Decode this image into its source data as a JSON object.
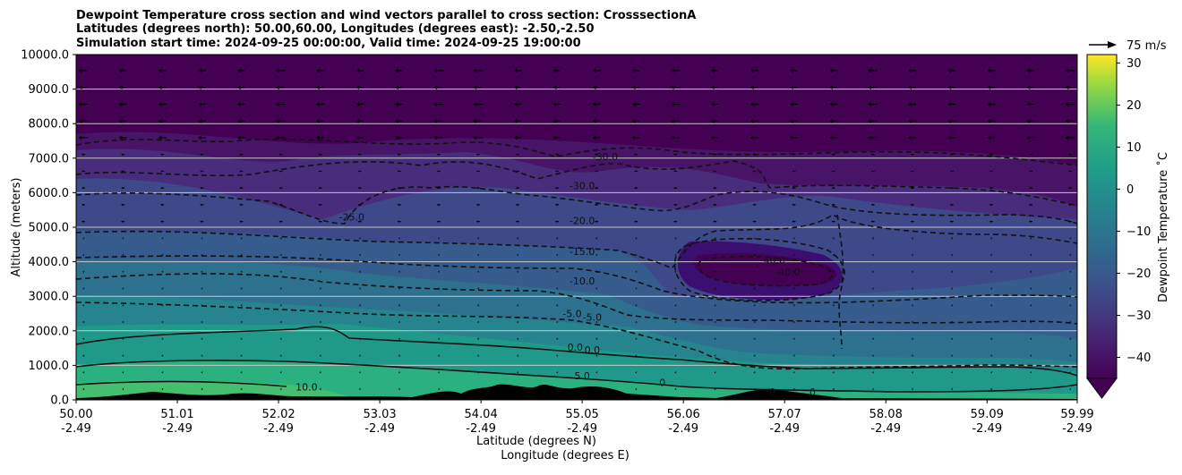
{
  "chart_data": {
    "type": "heatmap",
    "title_lines": [
      "Dewpoint Temperature cross section and wind vectors parallel to cross section: CrosssectionA",
      "Latitudes (degrees north): 50.00,60.00, Longitudes (degrees east): -2.50,-2.50",
      "Simulation start time: 2024-09-25 00:00:00, Valid time: 2024-09-25 19:00:00"
    ],
    "ylabel": "Altitude (meters)",
    "xlabel": "Latitude (degrees N)",
    "xlabel2": "Longitude (degrees E)",
    "ylim": [
      0,
      10000
    ],
    "y_ticks": [
      "0.0",
      "1000.0",
      "2000.0",
      "3000.0",
      "4000.0",
      "5000.0",
      "6000.0",
      "7000.0",
      "8000.0",
      "9000.0",
      "10000.0"
    ],
    "y_tick_values": [
      0,
      1000,
      2000,
      3000,
      4000,
      5000,
      6000,
      7000,
      8000,
      9000,
      10000
    ],
    "x_ticks": [
      {
        "lat": "50.00",
        "lon": "-2.49"
      },
      {
        "lat": "51.01",
        "lon": "-2.49"
      },
      {
        "lat": "52.02",
        "lon": "-2.49"
      },
      {
        "lat": "53.03",
        "lon": "-2.49"
      },
      {
        "lat": "54.04",
        "lon": "-2.49"
      },
      {
        "lat": "55.05",
        "lon": "-2.49"
      },
      {
        "lat": "56.06",
        "lon": "-2.49"
      },
      {
        "lat": "57.07",
        "lon": "-2.49"
      },
      {
        "lat": "58.08",
        "lon": "-2.49"
      },
      {
        "lat": "59.09",
        "lon": "-2.49"
      },
      {
        "lat": "59.99",
        "lon": "-2.49"
      }
    ],
    "x_tick_values": [
      50.0,
      51.01,
      52.02,
      53.03,
      54.04,
      55.05,
      56.06,
      57.07,
      58.08,
      59.09,
      59.99
    ],
    "xlim": [
      50.0,
      59.99
    ],
    "colorbar": {
      "label": "Dewpoint Temperature ˚C",
      "range": [
        -45,
        32
      ],
      "ticks": [
        "30",
        "20",
        "10",
        "0",
        "−10",
        "−20",
        "−30",
        "−40"
      ],
      "tick_values": [
        30,
        20,
        10,
        0,
        -10,
        -20,
        -30,
        -40
      ],
      "colormap": "viridis",
      "extend": "min"
    },
    "quiver_key": {
      "label": "75 m/s",
      "value": 75
    },
    "contour_labels": [
      {
        "text": "-30.0",
        "lat": 55.28,
        "alt": 7050
      },
      {
        "text": "-30.0",
        "lat": 55.05,
        "alt": 6200
      },
      {
        "text": "-25.0",
        "lat": 52.75,
        "alt": 5300
      },
      {
        "text": "-20.0",
        "lat": 55.05,
        "alt": 5200
      },
      {
        "text": "-15.0",
        "lat": 55.05,
        "alt": 4300
      },
      {
        "text": "-10.0",
        "lat": 55.05,
        "alt": 3450
      },
      {
        "text": "-5.0",
        "lat": 54.95,
        "alt": 2500
      },
      {
        "text": "-5.0",
        "lat": 55.15,
        "alt": 2400
      },
      {
        "text": "0.0",
        "lat": 54.98,
        "alt": 1530
      },
      {
        "text": "0.0",
        "lat": 55.15,
        "alt": 1450
      },
      {
        "text": "5.0",
        "lat": 55.05,
        "alt": 700
      },
      {
        "text": "10.0",
        "lat": 52.3,
        "alt": 380
      },
      {
        "text": "-40.0",
        "lat": 56.95,
        "alt": 4050
      },
      {
        "text": "-40.0",
        "lat": 57.1,
        "alt": 3700
      },
      {
        "text": "0",
        "lat": 55.85,
        "alt": 500
      },
      {
        "text": "0",
        "lat": 56.95,
        "alt": 230
      },
      {
        "text": "0",
        "lat": 57.35,
        "alt": 230
      }
    ],
    "contour_levels": [
      -40,
      -30,
      -25,
      -20,
      -15,
      -10,
      -5,
      0,
      5,
      10
    ],
    "grid": "horizontal"
  }
}
